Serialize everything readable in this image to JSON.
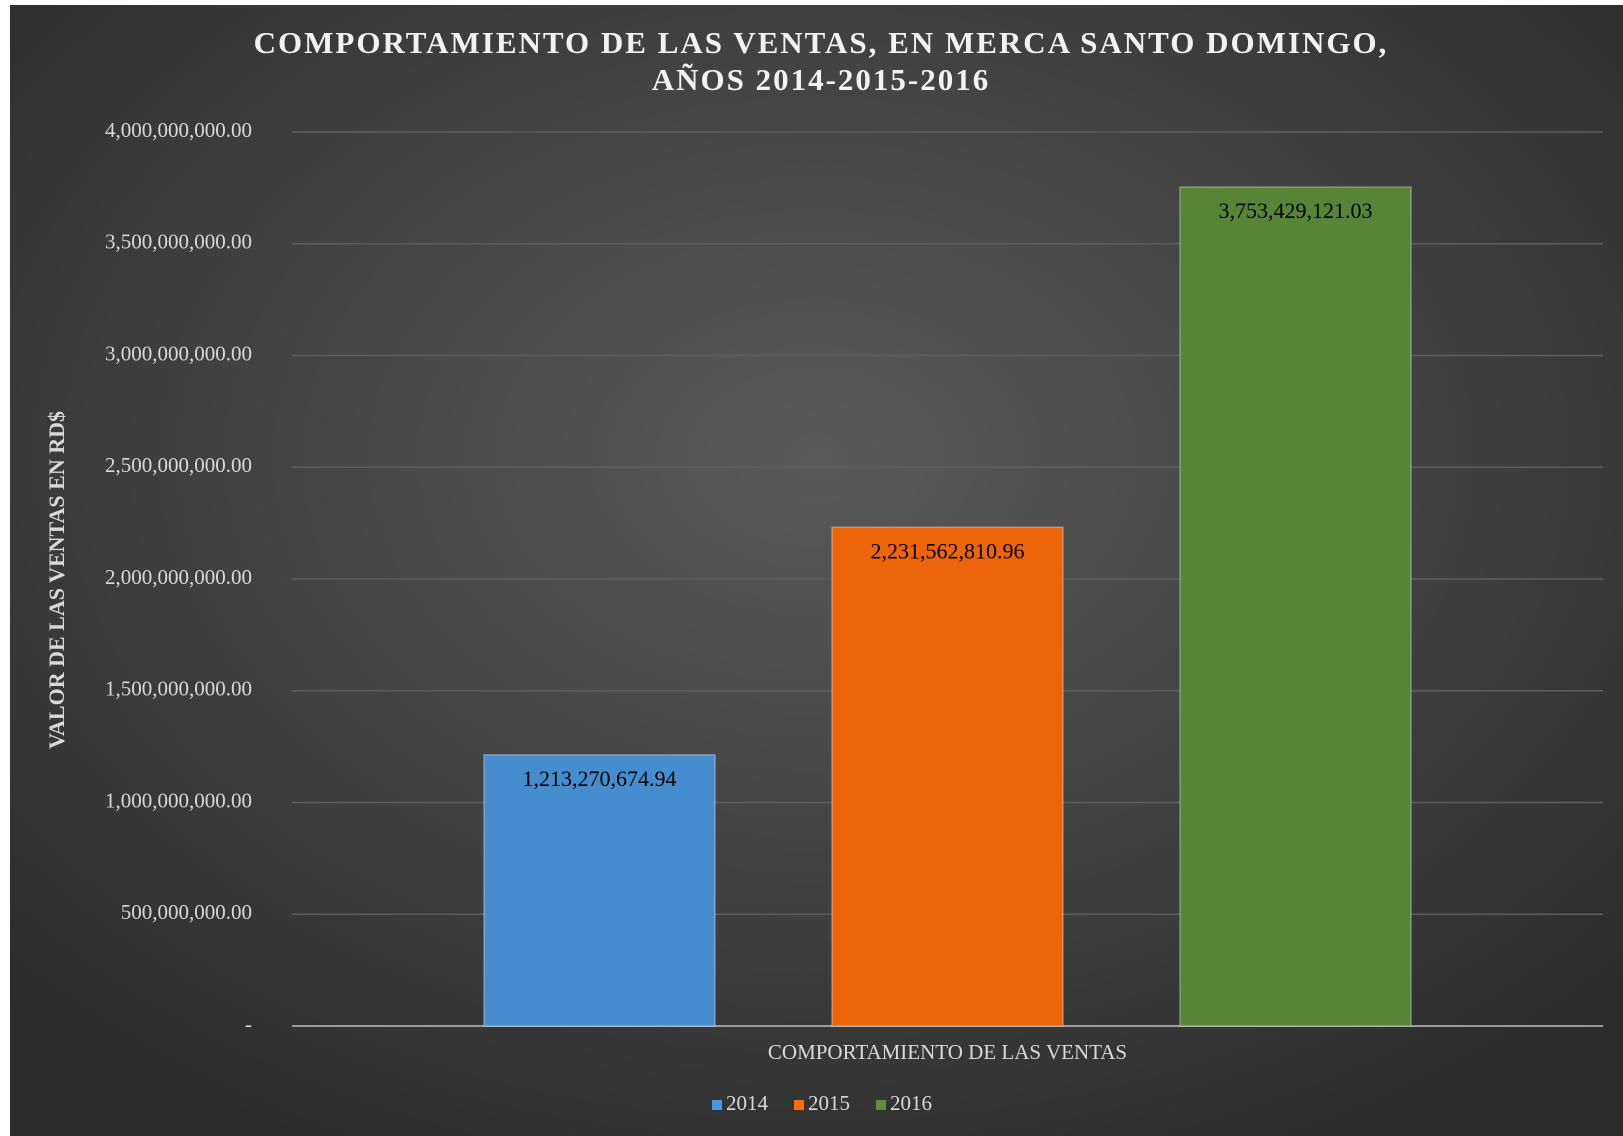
{
  "chart_data": {
    "type": "bar",
    "title": [
      "COMPORTAMIENTO DE LAS VENTAS, EN MERCA SANTO DOMINGO,",
      "AÑOS 2014-2015-2016"
    ],
    "y_label": "VALOR DE LAS VENTAS EN RD$",
    "categories": [
      "COMPORTAMIENTO DE LAS VENTAS"
    ],
    "series": [
      {
        "name": "2014",
        "color": "#4a98e0",
        "values": [
          1213270674.94
        ],
        "value_labels": [
          "1,213,270,674.94"
        ]
      },
      {
        "name": "2015",
        "color": "#ff6d0a",
        "values": [
          2231562810.96
        ],
        "value_labels": [
          "2,231,562,810.96"
        ]
      },
      {
        "name": "2016",
        "color": "#5e8f3a",
        "values": [
          3753429121.03
        ],
        "value_labels": [
          "3,753,429,121.03"
        ]
      }
    ],
    "ylim": [
      0,
      4000000000
    ],
    "yticks": [
      {
        "value": 0,
        "label": "-"
      },
      {
        "value": 500000000,
        "label": "500,000,000.00"
      },
      {
        "value": 1000000000,
        "label": "1,000,000,000.00"
      },
      {
        "value": 1500000000,
        "label": "1,500,000,000.00"
      },
      {
        "value": 2000000000,
        "label": "2,000,000,000.00"
      },
      {
        "value": 2500000000,
        "label": "2,500,000,000.00"
      },
      {
        "value": 3000000000,
        "label": "3,000,000,000.00"
      },
      {
        "value": 3500000000,
        "label": "3,500,000,000.00"
      },
      {
        "value": 4000000000,
        "label": "4,000,000,000.00"
      }
    ],
    "grid": true,
    "legend": "bottom"
  }
}
